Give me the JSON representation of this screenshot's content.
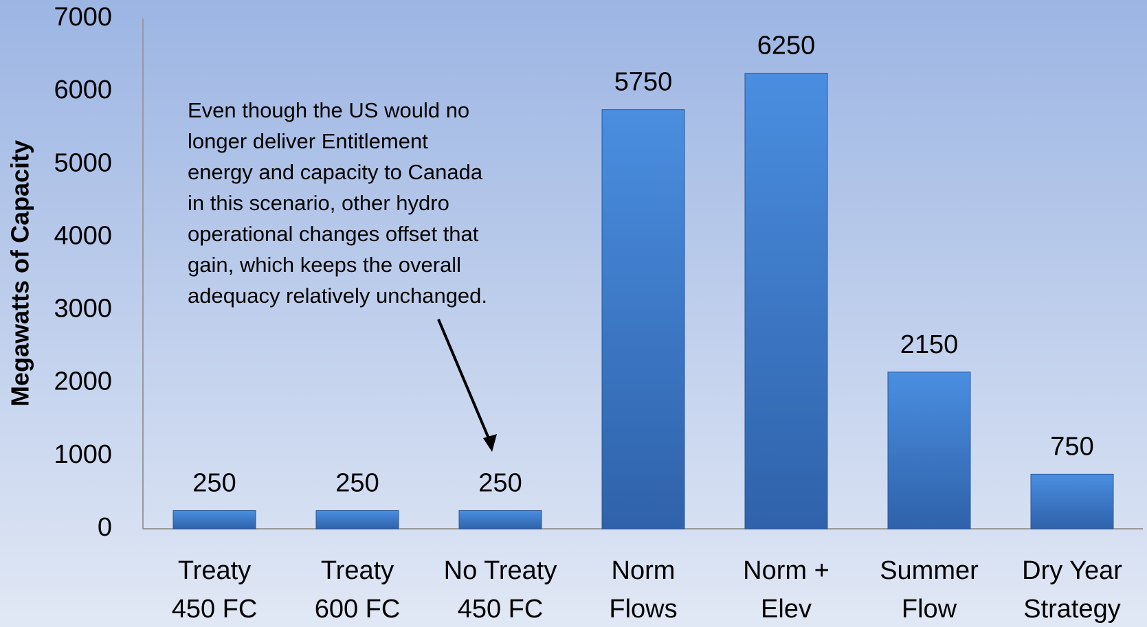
{
  "chart_data": {
    "type": "bar",
    "y_label": "Megawatts of Capacity",
    "categories": [
      [
        "Treaty",
        "450 FC"
      ],
      [
        "Treaty",
        "600 FC"
      ],
      [
        "No Treaty",
        "450 FC"
      ],
      [
        "Norm",
        "Flows"
      ],
      [
        "Norm +",
        "Elev"
      ],
      [
        "Summer",
        "Flow"
      ],
      [
        "Dry Year",
        "Strategy"
      ]
    ],
    "values": [
      250,
      250,
      250,
      5750,
      6250,
      2150,
      750
    ],
    "color": "#3f7fd0",
    "ylim": [
      0,
      7000
    ],
    "yticks": [
      0,
      1000,
      2000,
      3000,
      4000,
      5000,
      6000,
      7000
    ],
    "grid": false,
    "annotation": [
      "Even though the US would no",
      "longer deliver Entitlement",
      "energy and capacity to Canada",
      "in this scenario, other hydro",
      "operational changes offset that",
      "gain, which keeps the overall",
      "adequacy relatively unchanged."
    ]
  }
}
